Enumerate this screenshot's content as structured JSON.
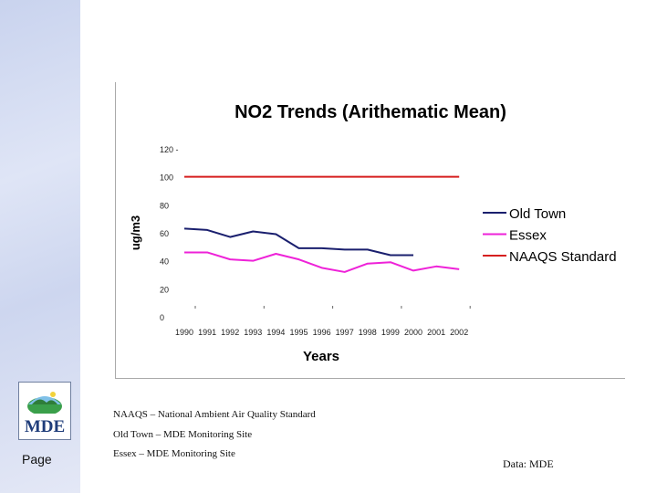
{
  "slide": {
    "page_label": "Page",
    "logo_text": "MDE",
    "notes": [
      "NAAQS – National Ambient Air Quality Standard",
      "Old Town – MDE Monitoring Site",
      "Essex – MDE Monitoring Site"
    ],
    "source": "Data: MDE"
  },
  "chart_data": {
    "type": "line",
    "title": "NO2 Trends (Arithematic Mean)",
    "xlabel": "Years",
    "ylabel": "ug/m3",
    "categories": [
      "1990",
      "1991",
      "1992",
      "1993",
      "1994",
      "1995",
      "1996",
      "1997",
      "1998",
      "1999",
      "2000",
      "2001",
      "2002"
    ],
    "ylim": [
      0,
      120
    ],
    "yticks": [
      "0",
      "20",
      "40",
      "60",
      "80",
      "100",
      "120 -"
    ],
    "series": [
      {
        "name": "Old Town",
        "color": "#1a1f6e",
        "values": [
          63,
          62,
          57,
          61,
          59,
          49,
          49,
          48,
          48,
          44,
          44,
          null,
          null
        ]
      },
      {
        "name": "Essex",
        "color": "#ee22d8",
        "values": [
          46,
          46,
          41,
          40,
          45,
          41,
          35,
          32,
          38,
          39,
          33,
          36,
          34
        ]
      },
      {
        "name": "NAAQS Standard",
        "color": "#d61f1f",
        "values": [
          100,
          100,
          100,
          100,
          100,
          100,
          100,
          100,
          100,
          100,
          100,
          100,
          100
        ]
      }
    ],
    "legend_position": "right"
  }
}
